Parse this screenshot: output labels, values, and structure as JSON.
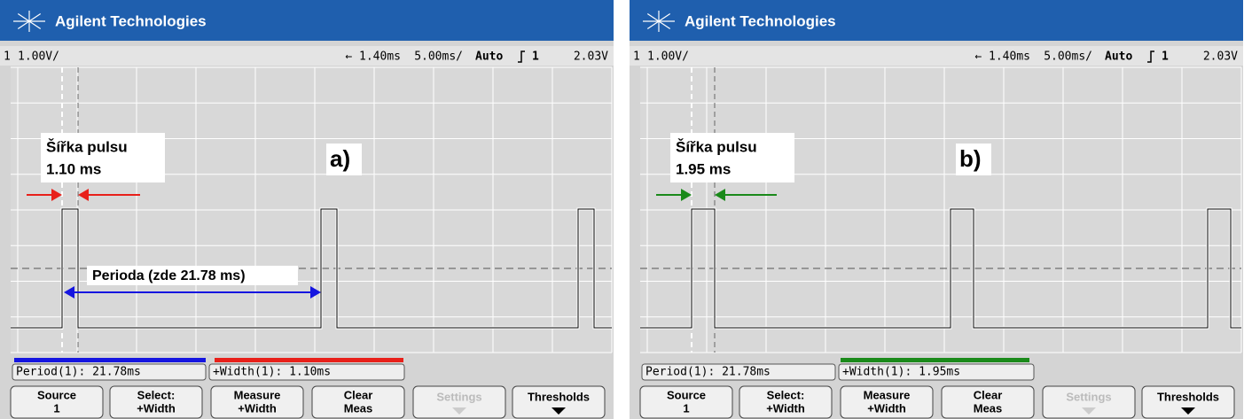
{
  "panels": [
    {
      "brand": "Agilent Technologies",
      "channel": "1",
      "scale": "1.00V/",
      "delay": "← 1.40ms",
      "timebase": "5.00ms/",
      "trigger_mode": "Auto",
      "trigger_source": "1",
      "trigger_level": "2.03V",
      "label": "a)",
      "width_annotation": [
        "Šířka pulsu",
        "1.10 ms"
      ],
      "period_annotation": "Perioda (zde 21.78 ms)",
      "measurements": [
        "Period(1): 21.78ms",
        "+Width(1): 1.10ms"
      ],
      "softkeys": [
        [
          "Source",
          "1"
        ],
        [
          "Select:",
          "+Width"
        ],
        [
          "Measure",
          "+Width"
        ],
        [
          "Clear",
          "Meas"
        ],
        [
          "Settings"
        ],
        [
          "Thresholds"
        ]
      ],
      "accent": "#e8201a"
    },
    {
      "brand": "Agilent Technologies",
      "channel": "1",
      "scale": "1.00V/",
      "delay": "← 1.40ms",
      "timebase": "5.00ms/",
      "trigger_mode": "Auto",
      "trigger_source": "1",
      "trigger_level": "2.03V",
      "label": "b)",
      "width_annotation": [
        "Šířka pulsu",
        "1.95 ms"
      ],
      "measurements": [
        "Period(1): 21.78ms",
        "+Width(1): 1.95ms"
      ],
      "softkeys": [
        [
          "Source",
          "1"
        ],
        [
          "Select:",
          "+Width"
        ],
        [
          "Measure",
          "+Width"
        ],
        [
          "Clear",
          "Meas"
        ],
        [
          "Settings"
        ],
        [
          "Thresholds"
        ]
      ],
      "accent": "#1a8a1a"
    }
  ]
}
